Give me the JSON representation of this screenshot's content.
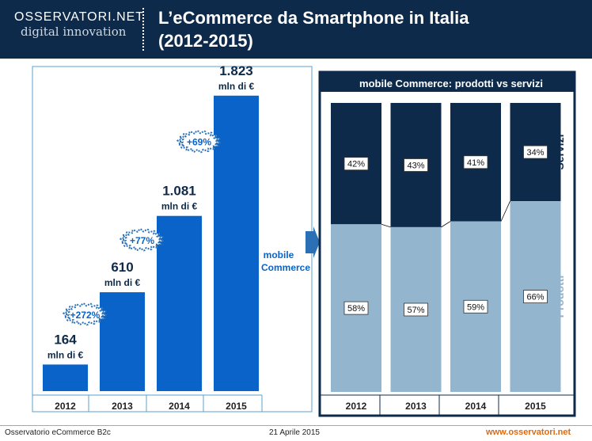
{
  "header": {
    "logo_top": "OSSERVATORI.NET",
    "logo_bottom": "digital innovation",
    "title_line1": "L’eCommerce da Smartphone in Italia",
    "title_line2": "(2012-2015)"
  },
  "footer": {
    "left": "Osservatorio eCommerce B2c",
    "center": "21 Aprile 2015",
    "right": "www.osservatori.net"
  },
  "colors": {
    "header_bg": "#0e2a4a",
    "bar_blue": "#0a63c9",
    "servizi": "#0e2a4a",
    "prodotti": "#93b5cd",
    "frame": "#0e2a4a"
  },
  "arrow_label": [
    "mobile",
    "Commerce"
  ],
  "chart_data": [
    {
      "type": "bar",
      "categories": [
        "2012",
        "2013",
        "2014",
        "2015"
      ],
      "values": [
        164,
        610,
        1081,
        1823
      ],
      "value_labels": [
        "164",
        "610",
        "1.081",
        "1.823"
      ],
      "unit_label": "mln di €",
      "growth_labels": [
        "+272%",
        "+77%",
        "+69%"
      ],
      "ylim": [
        0,
        1900
      ],
      "grid": false
    },
    {
      "type": "bar",
      "stacked": true,
      "percent": true,
      "title": "mobile Commerce: prodotti vs servizi",
      "categories": [
        "2012",
        "2013",
        "2014",
        "2015"
      ],
      "series": [
        {
          "name": "Prodotti",
          "values": [
            58,
            57,
            59,
            66
          ]
        },
        {
          "name": "Servizi",
          "values": [
            42,
            43,
            41,
            34
          ]
        }
      ],
      "ylim": [
        0,
        100
      ],
      "legend": "right-side vertical labels"
    }
  ]
}
